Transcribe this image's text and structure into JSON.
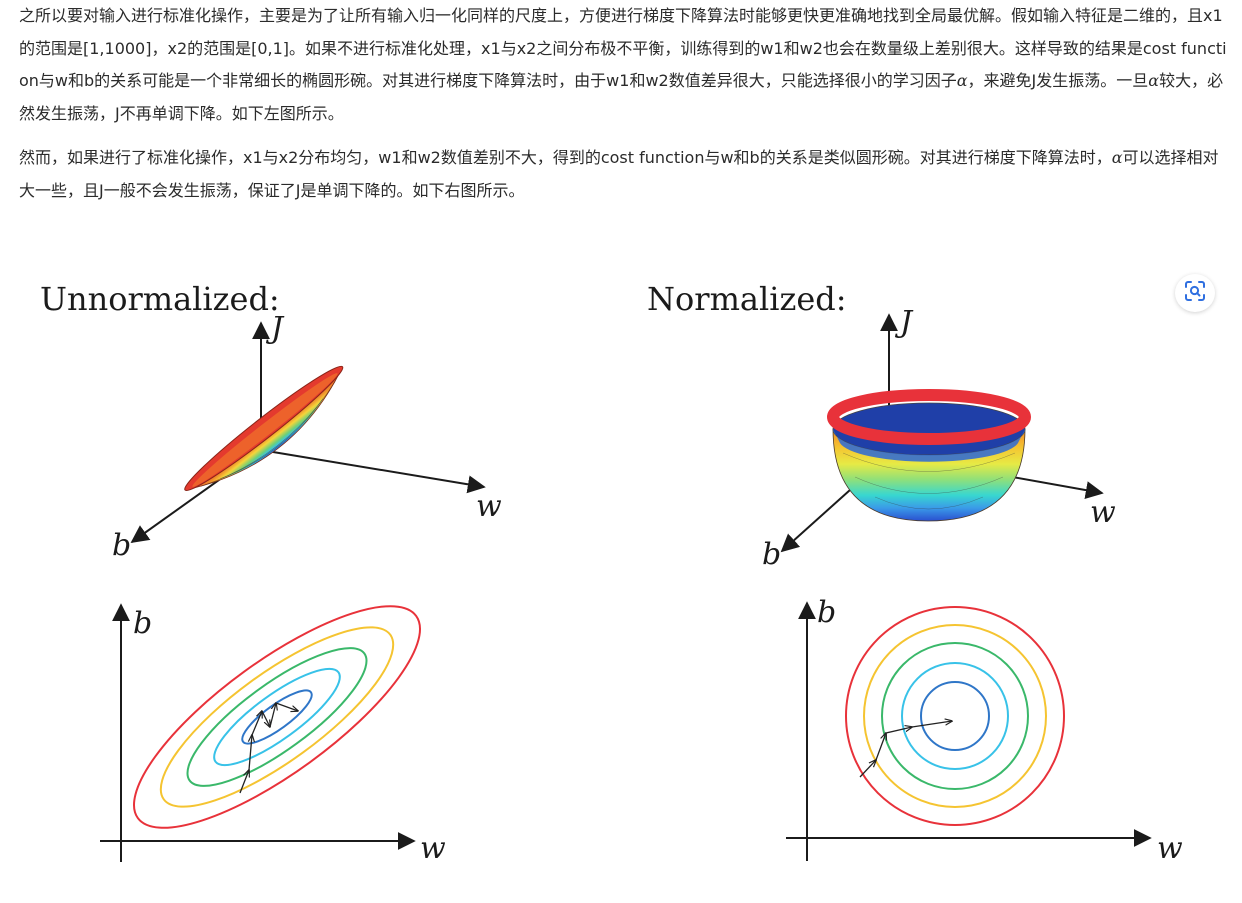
{
  "article": {
    "paragraph_1": {
      "part_1": "之所以要对输入进行标准化操作，主要是为了让所有输入归一化同样的尺度上，方便进行梯度下降算法时能够更快更准确地找到全局最优解。假如输入特征是二维的，且x1的范围是[1,1000]，x2的范围是[0,1]。如果不进行标准化处理，x1与x2之间分布极不平衡，训练得到的w1和w2也会在数量级上差别很大。这样导致的结果是cost function与w和b的关系可能是一个非常细长的椭圆形碗。对其进行梯度下降算法时，由于w1和w2数值差异很大，只能选择很小的学习因子",
      "alpha_1": "α",
      "part_2": "，来避免J发生振荡。一旦",
      "alpha_2": "α",
      "part_3": "较大，必然发生振荡，J不再单调下降。如下左图所示。"
    },
    "paragraph_2": {
      "part_1": "然而，如果进行了标准化操作，x1与x2分布均匀，w1和w2数值差别不大，得到的cost function与w和b的关系是类似圆形碗。对其进行梯度下降算法时，",
      "alpha_1": "α",
      "part_2": "可以选择相对大一些，且J一般不会发生振荡，保证了J是单调下降的。如下右图所示。"
    }
  },
  "figure": {
    "left_panel": {
      "title": "Unnormalized:",
      "surface_axes": {
        "vertical": "J",
        "horizontal": "w",
        "depth": "b"
      },
      "contour_axes": {
        "vertical": "b",
        "horizontal": "w"
      }
    },
    "right_panel": {
      "title": "Normalized:",
      "surface_axes": {
        "vertical": "J",
        "horizontal": "w",
        "depth": "b"
      },
      "contour_axes": {
        "vertical": "b",
        "horizontal": "w"
      }
    },
    "zoom_button": {
      "icon": "scan-zoom-icon"
    },
    "contour_colors": [
      "#e8323a",
      "#f5c431",
      "#3ab86a",
      "#38c2e8",
      "#2f76c8"
    ]
  }
}
